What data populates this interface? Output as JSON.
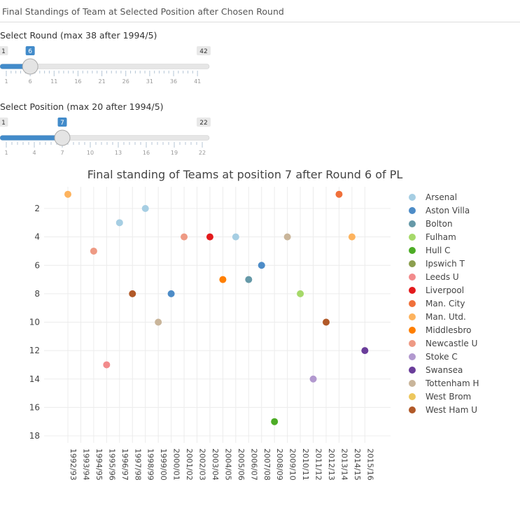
{
  "app_title": "Final Standings of Team at Selected Position after Chosen Round",
  "round_slider": {
    "label": "Select Round (max 38 after 1994/5)",
    "min": 1,
    "max": 42,
    "value": 6,
    "min_label": "1",
    "max_label": "42",
    "value_label": "6",
    "ticks": [
      "1",
      "6",
      "11",
      "16",
      "21",
      "26",
      "31",
      "36",
      "41"
    ],
    "accent": "#428bca"
  },
  "position_slider": {
    "label": "Select Position (max 20 after 1994/5)",
    "min": 1,
    "max": 22,
    "value": 7,
    "min_label": "1",
    "max_label": "22",
    "value_label": "7",
    "ticks": [
      "1",
      "4",
      "7",
      "10",
      "13",
      "16",
      "19",
      "22"
    ],
    "accent": "#428bca"
  },
  "chart_data": {
    "type": "scatter",
    "title": "Final standing of Teams at position 7 after Round 6 of PL",
    "xlabel": "",
    "ylabel": "",
    "ylim": [
      19,
      0.3
    ],
    "y_ticks": [
      2,
      4,
      6,
      8,
      10,
      12,
      14,
      16,
      18
    ],
    "categories": [
      "1992/93",
      "1993/94",
      "1994/95",
      "1995/96",
      "1996/97",
      "1997/98",
      "1998/99",
      "1999/00",
      "2000/01",
      "2001/02",
      "2002/03",
      "2003/04",
      "2004/05",
      "2005/06",
      "2006/07",
      "2007/08",
      "2008/09",
      "2009/10",
      "2010/11",
      "2011/12",
      "2012/13",
      "2013/14",
      "2014/15",
      "2015/16"
    ],
    "points": [
      {
        "season": "1992/93",
        "position": 1,
        "team": "Man. Utd."
      },
      {
        "season": "1994/95",
        "position": 5,
        "team": "Newcastle U"
      },
      {
        "season": "1995/96",
        "position": 13,
        "team": "Leeds U"
      },
      {
        "season": "1996/97",
        "position": 3,
        "team": "Arsenal"
      },
      {
        "season": "1997/98",
        "position": 8,
        "team": "West Ham U"
      },
      {
        "season": "1998/99",
        "position": 2,
        "team": "Arsenal"
      },
      {
        "season": "1999/00",
        "position": 10,
        "team": "Tottenham H"
      },
      {
        "season": "2000/01",
        "position": 8,
        "team": "Aston Villa"
      },
      {
        "season": "2001/02",
        "position": 4,
        "team": "Newcastle U"
      },
      {
        "season": "2003/04",
        "position": 4,
        "team": "Liverpool"
      },
      {
        "season": "2004/05",
        "position": 7,
        "team": "Middlesbro"
      },
      {
        "season": "2005/06",
        "position": 4,
        "team": "Arsenal"
      },
      {
        "season": "2006/07",
        "position": 7,
        "team": "Bolton"
      },
      {
        "season": "2007/08",
        "position": 6,
        "team": "Aston Villa"
      },
      {
        "season": "2008/09",
        "position": 17,
        "team": "Hull C"
      },
      {
        "season": "2009/10",
        "position": 4,
        "team": "Tottenham H"
      },
      {
        "season": "2010/11",
        "position": 8,
        "team": "Fulham"
      },
      {
        "season": "2011/12",
        "position": 14,
        "team": "Stoke C"
      },
      {
        "season": "2012/13",
        "position": 10,
        "team": "West Ham U"
      },
      {
        "season": "2013/14",
        "position": 1,
        "team": "Man. City"
      },
      {
        "season": "2014/15",
        "position": 4,
        "team": "Man. Utd."
      },
      {
        "season": "2015/16",
        "position": 12,
        "team": "Swansea"
      }
    ],
    "legend": [
      {
        "team": "Arsenal",
        "color": "#a6cee3"
      },
      {
        "team": "Aston Villa",
        "color": "#4d8cc7"
      },
      {
        "team": "Bolton",
        "color": "#6699a8"
      },
      {
        "team": "Fulham",
        "color": "#a6d96a"
      },
      {
        "team": "Hull C",
        "color": "#4dac26"
      },
      {
        "team": "Ipswich T",
        "color": "#8c9f4f"
      },
      {
        "team": "Leeds U",
        "color": "#f28b8c"
      },
      {
        "team": "Liverpool",
        "color": "#e31a1c"
      },
      {
        "team": "Man. City",
        "color": "#f0703a"
      },
      {
        "team": "Man. Utd.",
        "color": "#fdb35e"
      },
      {
        "team": "Middlesbro",
        "color": "#ff7f00"
      },
      {
        "team": "Newcastle U",
        "color": "#ee9a84"
      },
      {
        "team": "Stoke C",
        "color": "#b299cf"
      },
      {
        "team": "Swansea",
        "color": "#6a3d9a"
      },
      {
        "team": "Tottenham H",
        "color": "#c9b59a"
      },
      {
        "team": "West Brom",
        "color": "#edc75d"
      },
      {
        "team": "West Ham U",
        "color": "#b15928"
      }
    ],
    "legend_position": "right"
  }
}
